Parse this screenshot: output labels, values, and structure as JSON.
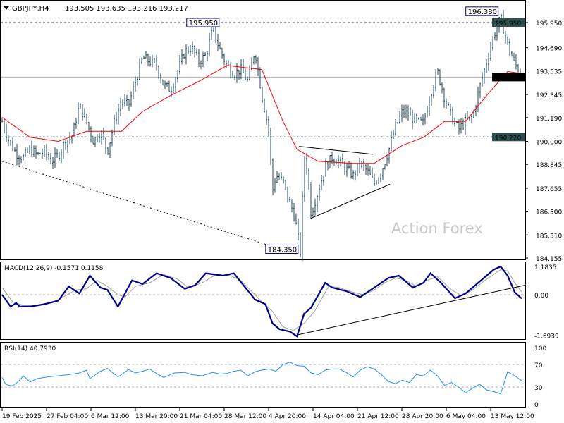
{
  "header": {
    "symbol": "GBPJPY,H4",
    "ohlc": "193.505 193.635 193.216 193.217"
  },
  "watermark": "Action Forex",
  "colors": {
    "bars": "#1f4a5c",
    "ma": "#ff0000",
    "macd": "#00008b",
    "signal": "#a0a0a0",
    "rsi": "#1e90ff",
    "label_bg": "#2f4f4f",
    "current_bg": "#000000"
  },
  "chart_data": [
    {
      "type": "line",
      "title": "GBPJPY,H4",
      "ylim": [
        184.155,
        196.8
      ],
      "yticks": [
        "195.950",
        "194.690",
        "193.535",
        "192.345",
        "191.190",
        "190.000",
        "188.845",
        "187.655",
        "186.500",
        "185.310",
        "184.155"
      ],
      "ytick_values": [
        195.95,
        194.69,
        193.535,
        192.345,
        191.19,
        190.0,
        188.845,
        187.655,
        186.5,
        185.31,
        184.155
      ],
      "xticks": [
        "19 Feb 2025",
        "27 Feb 04:00",
        "6 Mar 12:00",
        "13 Mar 20:00",
        "21 Mar 04:00",
        "28 Mar 12:00",
        "4 Apr 20:00",
        "14 Apr 04:00",
        "21 Apr 12:00",
        "28 Apr 20:00",
        "6 May 04:00",
        "13 May 12:00"
      ],
      "xtick_index": [
        0,
        8.4,
        16.8,
        25.2,
        33.6,
        42,
        50.4,
        58.8,
        67.2,
        75.6,
        84,
        92.4
      ],
      "close_path": [
        [
          0,
          191.0
        ],
        [
          2,
          190.0
        ],
        [
          4,
          189.4
        ],
        [
          6,
          189.2
        ],
        [
          8,
          189.6
        ],
        [
          10,
          189.3
        ],
        [
          12,
          189.5
        ],
        [
          14,
          189.0
        ],
        [
          16,
          189.3
        ],
        [
          18,
          190.0
        ],
        [
          20,
          190.3
        ],
        [
          22,
          191.8
        ],
        [
          24,
          191.0
        ],
        [
          26,
          190.0
        ],
        [
          28,
          190.5
        ],
        [
          30,
          189.5
        ],
        [
          32,
          191.0
        ],
        [
          34,
          192.0
        ],
        [
          36,
          191.8
        ],
        [
          38,
          193.0
        ],
        [
          40,
          194.2
        ],
        [
          42,
          194.0
        ],
        [
          44,
          193.8
        ],
        [
          46,
          192.8
        ],
        [
          48,
          192.6
        ],
        [
          50,
          193.5
        ],
        [
          52,
          194.5
        ],
        [
          54,
          194.7
        ],
        [
          56,
          194.0
        ],
        [
          58,
          194.3
        ],
        [
          60,
          195.6
        ],
        [
          62,
          194.6
        ],
        [
          64,
          193.8
        ],
        [
          66,
          193.4
        ],
        [
          68,
          193.6
        ],
        [
          70,
          193.0
        ],
        [
          72,
          194.6
        ],
        [
          74,
          192.3
        ],
        [
          76,
          190.5
        ],
        [
          77,
          187.5
        ],
        [
          78,
          188.3
        ],
        [
          80,
          188.0
        ],
        [
          82,
          186.8
        ],
        [
          83,
          186.5
        ],
        [
          84,
          185.5
        ],
        [
          85,
          184.4
        ],
        [
          86,
          189.3
        ],
        [
          87,
          188.5
        ],
        [
          88,
          186.4
        ],
        [
          90,
          187.5
        ],
        [
          92,
          188.7
        ],
        [
          94,
          189.2
        ],
        [
          96,
          189.0
        ],
        [
          98,
          188.6
        ],
        [
          100,
          188.3
        ],
        [
          102,
          188.9
        ],
        [
          104,
          188.5
        ],
        [
          106,
          187.9
        ],
        [
          108,
          188.5
        ],
        [
          110,
          189.5
        ],
        [
          112,
          190.7
        ],
        [
          114,
          191.5
        ],
        [
          116,
          191.3
        ],
        [
          118,
          191.0
        ],
        [
          120,
          190.9
        ],
        [
          122,
          192.4
        ],
        [
          124,
          193.5
        ],
        [
          126,
          192.2
        ],
        [
          128,
          191.2
        ],
        [
          130,
          190.6
        ],
        [
          132,
          191.0
        ],
        [
          134,
          191.2
        ],
        [
          136,
          192.7
        ],
        [
          138,
          194.0
        ],
        [
          140,
          195.3
        ],
        [
          142,
          196.2
        ],
        [
          144,
          194.8
        ],
        [
          146,
          193.9
        ],
        [
          148,
          193.2
        ]
      ],
      "ma_path": [
        [
          0,
          191.2
        ],
        [
          8,
          190.2
        ],
        [
          16,
          190.0
        ],
        [
          24,
          190.5
        ],
        [
          34,
          190.5
        ],
        [
          40,
          191.5
        ],
        [
          48,
          192.3
        ],
        [
          56,
          193.0
        ],
        [
          64,
          193.8
        ],
        [
          74,
          193.6
        ],
        [
          80,
          191.0
        ],
        [
          84,
          189.6
        ],
        [
          90,
          189.0
        ],
        [
          100,
          188.9
        ],
        [
          106,
          188.9
        ],
        [
          114,
          189.8
        ],
        [
          120,
          190.2
        ],
        [
          126,
          191.0
        ],
        [
          132,
          191.0
        ],
        [
          138,
          192.3
        ],
        [
          144,
          193.5
        ],
        [
          148,
          193.4
        ]
      ],
      "hlines": [
        {
          "value": 195.95,
          "label": "195.950",
          "style": "dashed"
        },
        {
          "value": 190.22,
          "label": "190.220",
          "style": "dashed"
        },
        {
          "value": 193.217,
          "label": "193.217",
          "style": "current"
        }
      ],
      "annotations": [
        {
          "text": "195.950",
          "index": 62,
          "value": 195.95
        },
        {
          "text": "184.350",
          "index": 84.5,
          "value": 184.35
        },
        {
          "text": "196.380",
          "index": 141.5,
          "value": 196.38
        }
      ],
      "trendlines": [
        {
          "from": [
            0,
            189.0
          ],
          "to": [
            84,
            184.35
          ],
          "style": "dashed"
        },
        {
          "from": [
            84.6,
            189.75
          ],
          "to": [
            105.6,
            189.35
          ],
          "style": "solid"
        },
        {
          "from": [
            87.4,
            186.1
          ],
          "to": [
            110.4,
            187.85
          ],
          "style": "solid"
        }
      ]
    },
    {
      "type": "line",
      "title": "MACD(12,26,9) -0.1571 0.1158",
      "ylim": [
        -1.75,
        1.25
      ],
      "yticks": [
        "1.1835",
        "0.00",
        "-1.6939"
      ],
      "ytick_values": [
        1.1835,
        0,
        -1.6939
      ],
      "macd": [
        [
          0,
          0
        ],
        [
          2.4,
          -0.5
        ],
        [
          4,
          -0.35
        ],
        [
          5,
          -0.5
        ],
        [
          8,
          -0.5
        ],
        [
          12,
          -0.4
        ],
        [
          16,
          -0.25
        ],
        [
          19,
          0.35
        ],
        [
          22,
          0.05
        ],
        [
          25,
          0.8
        ],
        [
          28,
          0.3
        ],
        [
          30,
          0.2
        ],
        [
          33,
          -0.5
        ],
        [
          37,
          0.6
        ],
        [
          40,
          0.45
        ],
        [
          44,
          0.9
        ],
        [
          48,
          0.7
        ],
        [
          52,
          0.25
        ],
        [
          55,
          0.4
        ],
        [
          58,
          0.9
        ],
        [
          63,
          0.8
        ],
        [
          66,
          0.9
        ],
        [
          72,
          -0.2
        ],
        [
          75,
          -0.4
        ],
        [
          77,
          -1.2
        ],
        [
          79,
          -1.45
        ],
        [
          82,
          -1.55
        ],
        [
          84,
          -1.75
        ],
        [
          86,
          -0.8
        ],
        [
          88,
          -0.55
        ],
        [
          92,
          0.5
        ],
        [
          94,
          0.3
        ],
        [
          98,
          0.15
        ],
        [
          102,
          -0.1
        ],
        [
          104,
          0.1
        ],
        [
          107,
          0.4
        ],
        [
          110,
          0.7
        ],
        [
          113,
          0.8
        ],
        [
          117,
          0.3
        ],
        [
          120,
          0.5
        ],
        [
          122,
          0.9
        ],
        [
          125,
          0.5
        ],
        [
          129,
          -0.15
        ],
        [
          132,
          0.05
        ],
        [
          136,
          0.55
        ],
        [
          140,
          1.05
        ],
        [
          142,
          1.18
        ],
        [
          144,
          0.8
        ],
        [
          146,
          0.1
        ],
        [
          148,
          -0.16
        ]
      ],
      "signal": [
        [
          0,
          0.3
        ],
        [
          3,
          -0.3
        ],
        [
          6,
          -0.45
        ],
        [
          10,
          -0.45
        ],
        [
          14,
          -0.35
        ],
        [
          18,
          -0.05
        ],
        [
          21,
          0.2
        ],
        [
          24,
          0.25
        ],
        [
          27,
          0.6
        ],
        [
          30,
          0.35
        ],
        [
          33,
          0.0
        ],
        [
          35,
          -0.1
        ],
        [
          38,
          0.35
        ],
        [
          42,
          0.5
        ],
        [
          46,
          0.85
        ],
        [
          50,
          0.65
        ],
        [
          53,
          0.3
        ],
        [
          57,
          0.5
        ],
        [
          61,
          0.85
        ],
        [
          65,
          0.8
        ],
        [
          68,
          0.6
        ],
        [
          74,
          -0.3
        ],
        [
          77,
          -0.7
        ],
        [
          80,
          -1.35
        ],
        [
          83,
          -1.5
        ],
        [
          86,
          -1.2
        ],
        [
          89,
          -0.7
        ],
        [
          93,
          0.35
        ],
        [
          96,
          0.3
        ],
        [
          100,
          0.1
        ],
        [
          103,
          0.0
        ],
        [
          106,
          0.2
        ],
        [
          109,
          0.5
        ],
        [
          112,
          0.7
        ],
        [
          115,
          0.6
        ],
        [
          118,
          0.35
        ],
        [
          121,
          0.6
        ],
        [
          124,
          0.75
        ],
        [
          128,
          0.2
        ],
        [
          131,
          -0.05
        ],
        [
          134,
          0.2
        ],
        [
          138,
          0.65
        ],
        [
          142,
          1.05
        ],
        [
          144,
          1.0
        ],
        [
          146,
          0.5
        ],
        [
          148,
          0.12
        ]
      ],
      "trendline": {
        "from": [
          84,
          -1.69
        ],
        "to": [
          149,
          0.4
        ]
      }
    },
    {
      "type": "line",
      "title": "RSI(14) 40.7930",
      "ylim": [
        0,
        100
      ],
      "yticks": [
        "100",
        "70",
        "30",
        "0"
      ],
      "ytick_values": [
        100,
        70,
        30,
        0
      ],
      "levels": [
        70,
        30
      ],
      "rsi": [
        [
          0,
          47
        ],
        [
          1,
          35
        ],
        [
          2,
          33
        ],
        [
          3,
          32
        ],
        [
          5,
          42
        ],
        [
          6,
          50
        ],
        [
          8,
          39
        ],
        [
          10,
          45
        ],
        [
          13,
          48
        ],
        [
          16,
          50
        ],
        [
          19,
          52
        ],
        [
          22,
          55
        ],
        [
          24,
          60
        ],
        [
          25,
          45
        ],
        [
          28,
          58
        ],
        [
          30,
          63
        ],
        [
          33,
          48
        ],
        [
          36,
          61
        ],
        [
          38,
          55
        ],
        [
          40,
          58
        ],
        [
          42,
          62
        ],
        [
          44,
          54
        ],
        [
          46,
          47
        ],
        [
          49,
          55
        ],
        [
          52,
          56
        ],
        [
          54,
          52
        ],
        [
          57,
          50
        ],
        [
          60,
          56
        ],
        [
          62,
          53
        ],
        [
          64,
          54
        ],
        [
          66,
          58
        ],
        [
          68,
          60
        ],
        [
          70,
          50
        ],
        [
          72,
          57
        ],
        [
          74,
          60
        ],
        [
          76,
          62
        ],
        [
          78,
          58
        ],
        [
          80,
          70
        ],
        [
          82,
          74
        ],
        [
          84,
          68
        ],
        [
          86,
          67
        ],
        [
          88,
          55
        ],
        [
          90,
          52
        ],
        [
          92,
          60
        ],
        [
          94,
          62
        ],
        [
          96,
          62
        ],
        [
          98,
          56
        ],
        [
          100,
          48
        ],
        [
          102,
          60
        ],
        [
          104,
          66
        ],
        [
          106,
          62
        ],
        [
          108,
          52
        ],
        [
          110,
          40
        ],
        [
          112,
          36
        ],
        [
          114,
          42
        ],
        [
          116,
          38
        ],
        [
          118,
          52
        ],
        [
          120,
          50
        ],
        [
          122,
          60
        ],
        [
          124,
          50
        ],
        [
          126,
          33
        ],
        [
          128,
          38
        ],
        [
          130,
          30
        ],
        [
          132,
          20
        ],
        [
          134,
          28
        ],
        [
          136,
          35
        ],
        [
          138,
          25
        ],
        [
          140,
          22
        ],
        [
          142,
          18
        ],
        [
          144,
          57
        ],
        [
          146,
          50
        ],
        [
          148,
          41
        ]
      ]
    }
  ]
}
